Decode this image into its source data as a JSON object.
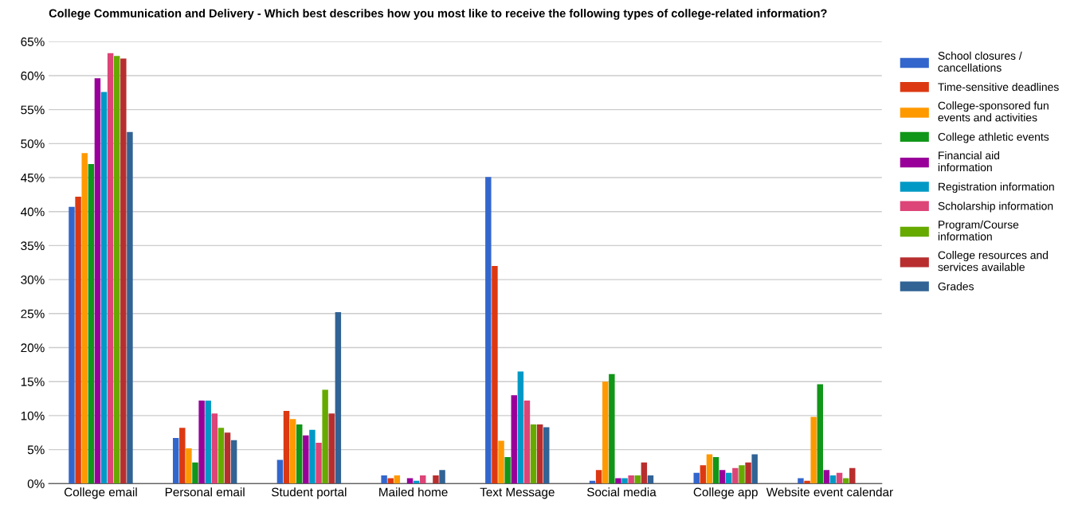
{
  "chart_data": {
    "type": "bar",
    "title": "College Communication and Delivery - Which best describes how you most like to receive the following types of college-related information?",
    "categories": [
      "College email",
      "Personal email",
      "Student portal",
      "Mailed home",
      "Text Message",
      "Social media",
      "College app",
      "Website event calendar"
    ],
    "series": [
      {
        "name": "School closures / cancellations",
        "color": "#3366cc",
        "values": [
          40.7,
          6.7,
          3.5,
          1.2,
          45.1,
          0.4,
          1.6,
          0.8
        ]
      },
      {
        "name": "Time-sensitive deadlines",
        "color": "#dc3912",
        "values": [
          42.2,
          8.2,
          10.7,
          0.8,
          32.0,
          2.0,
          2.7,
          0.4
        ]
      },
      {
        "name": "College-sponsored fun events and activities",
        "color": "#ff9900",
        "values": [
          48.6,
          5.2,
          9.5,
          1.2,
          6.3,
          15.0,
          4.3,
          9.8
        ]
      },
      {
        "name": "College athletic events",
        "color": "#109618",
        "values": [
          47.0,
          3.1,
          8.7,
          0,
          3.9,
          16.1,
          3.9,
          14.6
        ]
      },
      {
        "name": "Financial aid information",
        "color": "#990099",
        "values": [
          59.6,
          12.2,
          7.1,
          0.8,
          13.0,
          0.8,
          2.0,
          2.0
        ]
      },
      {
        "name": "Registration information",
        "color": "#0099c6",
        "values": [
          57.6,
          12.2,
          7.9,
          0.4,
          16.5,
          0.8,
          1.6,
          1.2
        ]
      },
      {
        "name": "Scholarship information",
        "color": "#dd4477",
        "values": [
          63.3,
          10.3,
          6.0,
          1.2,
          12.2,
          1.2,
          2.3,
          1.6
        ]
      },
      {
        "name": "Program/Course information",
        "color": "#66aa00",
        "values": [
          62.9,
          8.2,
          13.8,
          0,
          8.7,
          1.2,
          2.7,
          0.8
        ]
      },
      {
        "name": "College resources and services available",
        "color": "#b82e2e",
        "values": [
          62.5,
          7.5,
          10.3,
          1.2,
          8.7,
          3.1,
          3.1,
          2.3
        ]
      },
      {
        "name": "Grades",
        "color": "#316395",
        "values": [
          51.7,
          6.4,
          25.2,
          2.0,
          8.3,
          1.2,
          4.3,
          0
        ]
      }
    ],
    "ylim": [
      0,
      65
    ],
    "yticks": [
      {
        "value": 0,
        "label": "0%"
      },
      {
        "value": 5,
        "label": "5%"
      },
      {
        "value": 10,
        "label": "10%"
      },
      {
        "value": 15,
        "label": "15%"
      },
      {
        "value": 20,
        "label": "20%"
      },
      {
        "value": 25,
        "label": "25%"
      },
      {
        "value": 30,
        "label": "30%"
      },
      {
        "value": 35,
        "label": "35%"
      },
      {
        "value": 40,
        "label": "40%"
      },
      {
        "value": 45,
        "label": "45%"
      },
      {
        "value": 50,
        "label": "50%"
      },
      {
        "value": 55,
        "label": "55%"
      },
      {
        "value": 60,
        "label": "60%"
      },
      {
        "value": 65,
        "label": "65%"
      }
    ],
    "grid": "y",
    "legend": "right"
  }
}
